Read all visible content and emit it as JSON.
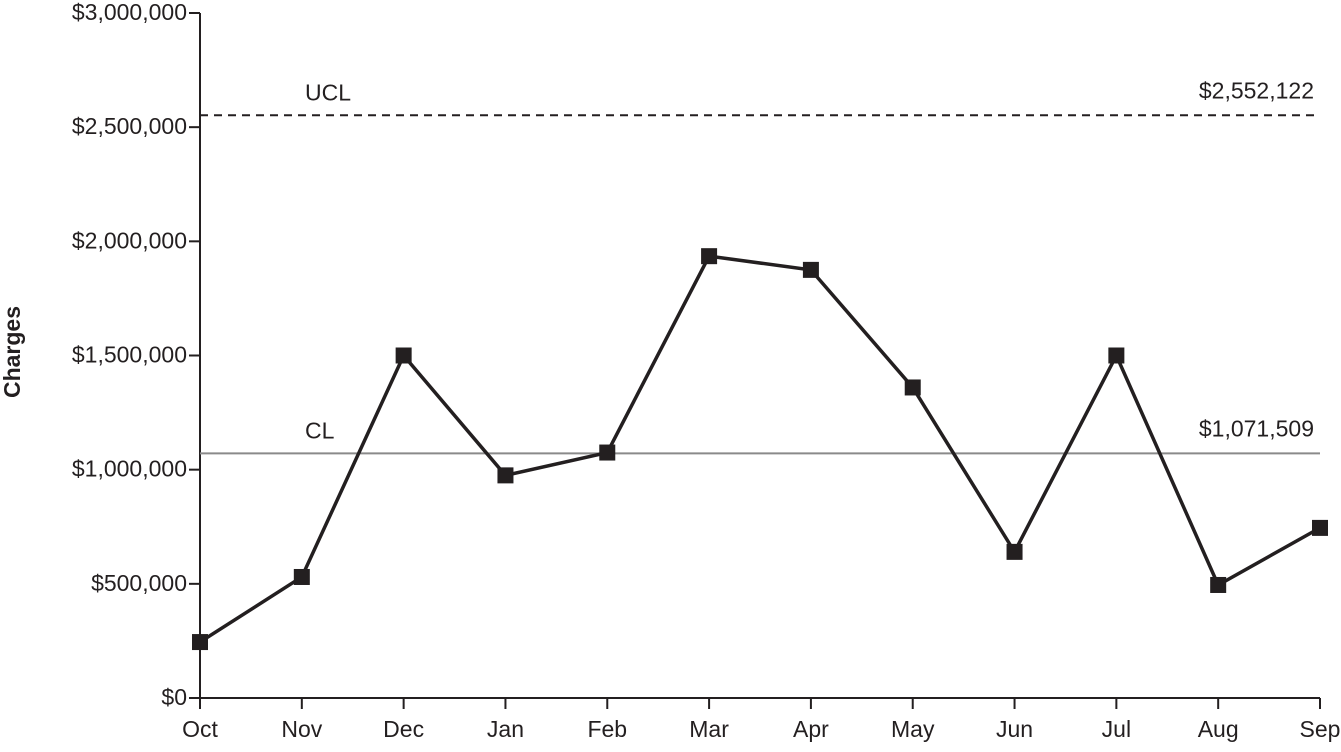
{
  "chart_data": {
    "type": "line",
    "y_label": "Charges",
    "categories": [
      "Oct",
      "Nov",
      "Dec",
      "Jan",
      "Feb",
      "Mar",
      "Apr",
      "May",
      "Jun",
      "Jul",
      "Aug",
      "Sep"
    ],
    "values": [
      245000,
      530000,
      1500000,
      975000,
      1075000,
      1935000,
      1875000,
      1360000,
      640000,
      1500000,
      495000,
      745000
    ],
    "color": "#231f20",
    "ylim": [
      0,
      3000000
    ],
    "yticks": [
      {
        "value": 0,
        "label": "$0"
      },
      {
        "value": 500000,
        "label": "$500,000"
      },
      {
        "value": 1000000,
        "label": "$1,000,000"
      },
      {
        "value": 1500000,
        "label": "$1,500,000"
      },
      {
        "value": 2000000,
        "label": "$2,000,000"
      },
      {
        "value": 2500000,
        "label": "$2,500,000"
      },
      {
        "value": 3000000,
        "label": "$3,000,000"
      }
    ],
    "control_lines": [
      {
        "name": "UCL",
        "value": 2552122,
        "value_label": "$2,552,122",
        "style": "dashed",
        "color": "#231f20"
      },
      {
        "name": "CL",
        "value": 1071509,
        "value_label": "$1,071,509",
        "style": "solid",
        "color": "#8a8a8a"
      }
    ]
  }
}
